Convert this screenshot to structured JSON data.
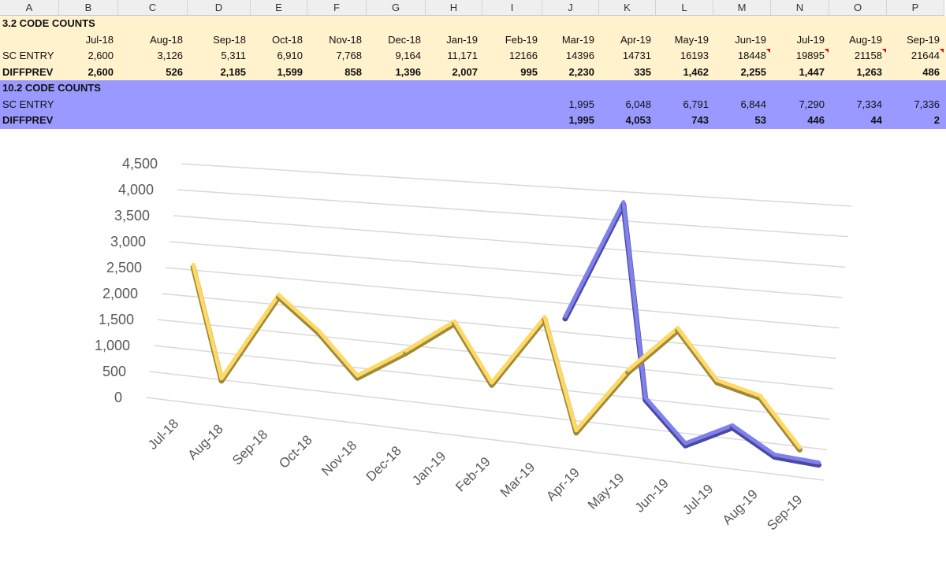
{
  "columns": [
    "A",
    "B",
    "C",
    "D",
    "E",
    "F",
    "G",
    "H",
    "I",
    "J",
    "K",
    "L",
    "M",
    "N",
    "O",
    "P"
  ],
  "section1": {
    "title": "3.2 CODE COUNTS",
    "months": [
      "Jul-18",
      "Aug-18",
      "Sep-18",
      "Oct-18",
      "Nov-18",
      "Dec-18",
      "Jan-19",
      "Feb-19",
      "Mar-19",
      "Apr-19",
      "May-19",
      "Jun-19",
      "Jul-19",
      "Aug-19",
      "Sep-19"
    ],
    "sc_entry_label": "SC ENTRY",
    "sc_entry": [
      "2,600",
      "3,126",
      "5,311",
      "6,910",
      "7,768",
      "9,164",
      "11,171",
      "12166",
      "14396",
      "14731",
      "16193",
      "18448",
      "19895",
      "21158",
      "21644"
    ],
    "diffprev_label": "DIFFPREV",
    "diffprev": [
      "2,600",
      "526",
      "2,185",
      "1,599",
      "858",
      "1,396",
      "2,007",
      "995",
      "2,230",
      "335",
      "1,462",
      "2,255",
      "1,447",
      "1,263",
      "486"
    ]
  },
  "section2": {
    "title": "10.2 CODE COUNTS",
    "sc_entry_label": "SC ENTRY",
    "sc_entry": [
      "",
      "",
      "",
      "",
      "",
      "",
      "",
      "",
      "1,995",
      "6,048",
      "6,791",
      "6,844",
      "7,290",
      "7,334",
      "7,336"
    ],
    "diffprev_label": "DIFFPREV",
    "diffprev": [
      "",
      "",
      "",
      "",
      "",
      "",
      "",
      "",
      "1,995",
      "4,053",
      "743",
      "53",
      "446",
      "44",
      "2"
    ]
  },
  "chart_data": {
    "type": "line",
    "style": "3d",
    "categories": [
      "Jul-18",
      "Aug-18",
      "Sep-18",
      "Oct-18",
      "Nov-18",
      "Dec-18",
      "Jan-19",
      "Feb-19",
      "Mar-19",
      "Apr-19",
      "May-19",
      "Jun-19",
      "Jul-19",
      "Aug-19",
      "Sep-19"
    ],
    "series": [
      {
        "values": [
          2600,
          526,
          2185,
          1599,
          858,
          1396,
          2007,
          995,
          2230,
          335,
          1462,
          2255,
          1447,
          1263,
          486
        ],
        "color": "#ffd966"
      },
      {
        "values": [
          null,
          null,
          null,
          null,
          null,
          null,
          null,
          null,
          1995,
          4053,
          743,
          53,
          446,
          44,
          2
        ],
        "color": "#8080ee"
      }
    ],
    "ylim": [
      0,
      4500
    ],
    "yticks": [
      "0",
      "500",
      "1,000",
      "1,500",
      "2,000",
      "2,500",
      "3,000",
      "3,500",
      "4,000",
      "4,500"
    ],
    "grid": true,
    "legend": "none"
  }
}
